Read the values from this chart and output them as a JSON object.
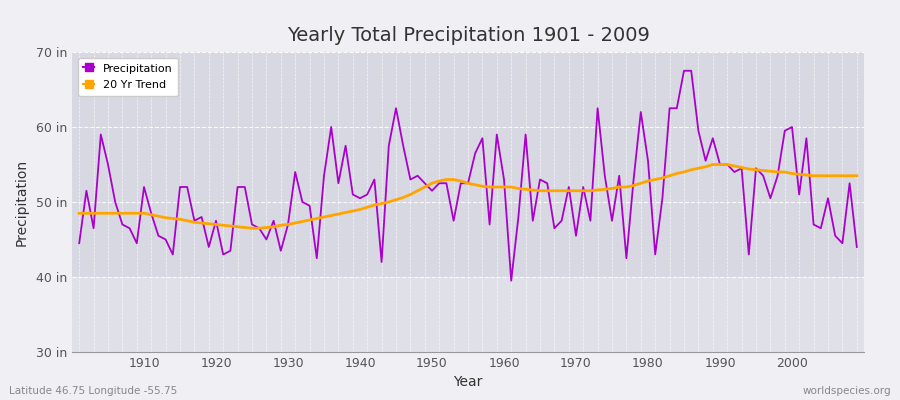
{
  "title": "Yearly Total Precipitation 1901 - 2009",
  "xlabel": "Year",
  "ylabel": "Precipitation",
  "lat_lon_label": "Latitude 46.75 Longitude -55.75",
  "watermark": "worldspecies.org",
  "precipitation_color": "#AA00CC",
  "trend_color": "#FFA500",
  "figure_bg_color": "#F0F0F4",
  "plot_bg_color": "#E0E0E8",
  "active_band_color": "#D8D8E2",
  "ylim": [
    30,
    70
  ],
  "xlim": [
    1900,
    2010
  ],
  "yticks": [
    30,
    40,
    50,
    60,
    70
  ],
  "ytick_labels": [
    "30 in",
    "40 in",
    "50 in",
    "60 in",
    "70 in"
  ],
  "xticks": [
    1910,
    1920,
    1930,
    1940,
    1950,
    1960,
    1970,
    1980,
    1990,
    2000
  ],
  "years": [
    1901,
    1902,
    1903,
    1904,
    1905,
    1906,
    1907,
    1908,
    1909,
    1910,
    1911,
    1912,
    1913,
    1914,
    1915,
    1916,
    1917,
    1918,
    1919,
    1920,
    1921,
    1922,
    1923,
    1924,
    1925,
    1926,
    1927,
    1928,
    1929,
    1930,
    1931,
    1932,
    1933,
    1934,
    1935,
    1936,
    1937,
    1938,
    1939,
    1940,
    1941,
    1942,
    1943,
    1944,
    1945,
    1946,
    1947,
    1948,
    1949,
    1950,
    1951,
    1952,
    1953,
    1954,
    1955,
    1956,
    1957,
    1958,
    1959,
    1960,
    1961,
    1962,
    1963,
    1964,
    1965,
    1966,
    1967,
    1968,
    1969,
    1970,
    1971,
    1972,
    1973,
    1974,
    1975,
    1976,
    1977,
    1978,
    1979,
    1980,
    1981,
    1982,
    1983,
    1984,
    1985,
    1986,
    1987,
    1988,
    1989,
    1990,
    1991,
    1992,
    1993,
    1994,
    1995,
    1996,
    1997,
    1998,
    1999,
    2000,
    2001,
    2002,
    2003,
    2004,
    2005,
    2006,
    2007,
    2008,
    2009
  ],
  "precipitation": [
    44.5,
    51.5,
    46.5,
    59.0,
    55.0,
    50.0,
    47.0,
    46.5,
    44.5,
    52.0,
    48.5,
    45.5,
    45.0,
    43.0,
    52.0,
    52.0,
    47.5,
    48.0,
    44.0,
    47.5,
    43.0,
    43.5,
    52.0,
    52.0,
    47.0,
    46.5,
    45.0,
    47.5,
    43.5,
    47.0,
    54.0,
    50.0,
    49.5,
    42.5,
    53.5,
    60.0,
    52.5,
    57.5,
    51.0,
    50.5,
    51.0,
    53.0,
    42.0,
    57.5,
    62.5,
    57.5,
    53.0,
    53.5,
    52.5,
    51.5,
    52.5,
    52.5,
    47.5,
    52.5,
    52.5,
    56.5,
    58.5,
    47.0,
    59.0,
    53.0,
    39.5,
    48.0,
    59.0,
    47.5,
    53.0,
    52.5,
    46.5,
    47.5,
    52.0,
    45.5,
    52.0,
    47.5,
    62.5,
    53.5,
    47.5,
    53.5,
    42.5,
    53.0,
    62.0,
    55.5,
    43.0,
    50.5,
    62.5,
    62.5,
    67.5,
    67.5,
    59.5,
    55.5,
    58.5,
    55.0,
    55.0,
    54.0,
    54.5,
    43.0,
    54.5,
    53.5,
    50.5,
    53.5,
    59.5,
    60.0,
    51.0,
    58.5,
    47.0,
    46.5,
    50.5,
    45.5,
    44.5,
    52.5,
    44.0
  ],
  "trend": [
    48.5,
    48.5,
    48.5,
    48.5,
    48.5,
    48.5,
    48.5,
    48.5,
    48.5,
    48.5,
    48.3,
    48.1,
    47.9,
    47.8,
    47.7,
    47.5,
    47.3,
    47.2,
    47.1,
    47.0,
    46.9,
    46.8,
    46.7,
    46.6,
    46.5,
    46.5,
    46.6,
    46.7,
    46.9,
    47.0,
    47.2,
    47.4,
    47.6,
    47.8,
    48.0,
    48.2,
    48.4,
    48.6,
    48.8,
    49.0,
    49.3,
    49.6,
    49.8,
    50.0,
    50.3,
    50.6,
    51.0,
    51.5,
    52.0,
    52.5,
    52.8,
    53.0,
    53.0,
    52.8,
    52.5,
    52.3,
    52.1,
    52.0,
    52.0,
    52.0,
    52.0,
    51.8,
    51.7,
    51.6,
    51.5,
    51.5,
    51.5,
    51.5,
    51.5,
    51.5,
    51.5,
    51.5,
    51.6,
    51.7,
    51.8,
    52.0,
    52.0,
    52.2,
    52.5,
    52.8,
    53.0,
    53.2,
    53.5,
    53.8,
    54.0,
    54.3,
    54.5,
    54.7,
    55.0,
    55.0,
    55.0,
    54.8,
    54.6,
    54.4,
    54.3,
    54.2,
    54.1,
    54.0,
    54.0,
    53.8,
    53.7,
    53.6,
    53.5,
    53.5,
    53.5,
    53.5,
    53.5,
    53.5,
    53.5
  ]
}
